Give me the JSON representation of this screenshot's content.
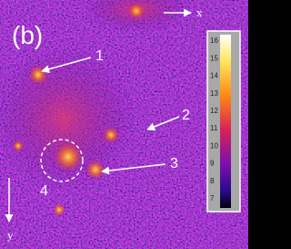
{
  "panel_label": "(b)",
  "axes": {
    "x": "x",
    "y": "y"
  },
  "annotations": [
    "1",
    "2",
    "3",
    "4"
  ],
  "colorbar": {
    "ticks": [
      16,
      15,
      14,
      13,
      12,
      11,
      10,
      9,
      8,
      7
    ]
  }
}
